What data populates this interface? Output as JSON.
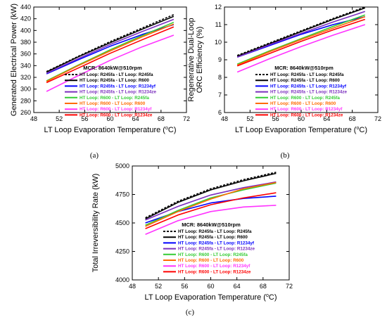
{
  "figure": {
    "panels": [
      {
        "id": "a",
        "panel_label": "(a)",
        "xlabel_main": "LT Loop Evaporation Temperature (",
        "xlabel_sup": "o",
        "xlabel_end": "C)",
        "ylabel_lines": [
          "Generated Electrical Power (kW)"
        ],
        "legend_title": "MCR: 8640kW@510rpm"
      },
      {
        "id": "b",
        "panel_label": "(b)",
        "xlabel_main": "LT Loop Evaporation Temperature (",
        "xlabel_sup": "o",
        "xlabel_end": "C)",
        "ylabel_lines": [
          "Regenerative Dual-Loop",
          "ORC Efficiency (%)"
        ],
        "legend_title": "MCR: 8640kW@510rpm"
      },
      {
        "id": "c",
        "panel_label": "(c)",
        "xlabel_main": "LT Loop Evaporation Temperature (",
        "xlabel_sup": "o",
        "xlabel_end": "C)",
        "ylabel_lines": [
          "Total Irreversibility Rate (kW)"
        ],
        "legend_title": "MCR: 8640kW@510rpm"
      }
    ]
  },
  "chart_data": [
    {
      "type": "line",
      "panel": "a",
      "title": "",
      "xlabel": "LT Loop Evaporation Temperature (oC)",
      "ylabel": "Generated Electrical Power (kW)",
      "xlim": [
        48,
        72
      ],
      "ylim": [
        260,
        440
      ],
      "xticks": [
        48,
        52,
        56,
        60,
        64,
        68,
        72
      ],
      "yticks": [
        260,
        280,
        300,
        320,
        340,
        360,
        380,
        400,
        420,
        440
      ],
      "legend_position": "lower-right",
      "x": [
        50,
        55,
        60,
        65,
        70
      ],
      "series": [
        {
          "name": "HT Loop: R245fa - LT Loop: R245fa",
          "color": "#000000",
          "dashed": true,
          "values": [
            330,
            356,
            381,
            404,
            427
          ]
        },
        {
          "name": "HT Loop: R245fa - LT Loop: R600",
          "color": "#000000",
          "dashed": false,
          "values": [
            329,
            355,
            379,
            402,
            424
          ]
        },
        {
          "name": "HT Loop: R245fa - LT Loop: R1234yf",
          "color": "#0000ff",
          "dashed": false,
          "values": [
            326,
            350,
            373,
            393,
            410
          ]
        },
        {
          "name": "HT Loop: R245fa - LT Loop: R1234ze",
          "color": "#7b2fbe",
          "dashed": false,
          "values": [
            327,
            352,
            376,
            398,
            419
          ]
        },
        {
          "name": "HT Loop: R600 - LT Loop: R245fa",
          "color": "#33cc33",
          "dashed": false,
          "values": [
            314,
            341,
            367,
            391,
            414
          ]
        },
        {
          "name": "HT Loop: R600 - LT Loop: R600",
          "color": "#ff6a00",
          "dashed": false,
          "values": [
            313,
            340,
            365,
            389,
            411
          ]
        },
        {
          "name": "HT Loop: R600 - LT Loop: R1234yf",
          "color": "#ff33ff",
          "dashed": false,
          "values": [
            296,
            323,
            349,
            372,
            392
          ]
        },
        {
          "name": "HT Loop: R600 - LT Loop: R1234ze",
          "color": "#ff0000",
          "dashed": false,
          "values": [
            311,
            336,
            361,
            384,
            406
          ]
        }
      ]
    },
    {
      "type": "line",
      "panel": "b",
      "title": "",
      "xlabel": "LT Loop Evaporation Temperature (oC)",
      "ylabel": "Regenerative Dual-Loop ORC Efficiency (%)",
      "xlim": [
        48,
        72
      ],
      "ylim": [
        6,
        12
      ],
      "xticks": [
        48,
        52,
        56,
        60,
        64,
        68,
        72
      ],
      "yticks": [
        6,
        7,
        8,
        9,
        10,
        11,
        12
      ],
      "legend_position": "lower-right",
      "x": [
        50,
        55,
        60,
        65,
        70
      ],
      "series": [
        {
          "name": "HT Loop: R245fa - LT Loop: R245fa",
          "color": "#000000",
          "dashed": true,
          "values": [
            9.25,
            9.95,
            10.65,
            11.35,
            12.0
          ]
        },
        {
          "name": "HT Loop: R245fa - LT Loop: R600",
          "color": "#000000",
          "dashed": false,
          "values": [
            9.2,
            9.9,
            10.6,
            11.3,
            11.95
          ]
        },
        {
          "name": "HT Loop: R245fa - LT Loop: R1234yf",
          "color": "#0000ff",
          "dashed": false,
          "values": [
            9.15,
            9.8,
            10.45,
            11.0,
            11.45
          ]
        },
        {
          "name": "HT Loop: R245fa - LT Loop: R1234ze",
          "color": "#7b2fbe",
          "dashed": false,
          "values": [
            9.15,
            9.85,
            10.5,
            11.15,
            11.75
          ]
        },
        {
          "name": "HT Loop: R600 - LT Loop: R245fa",
          "color": "#33cc33",
          "dashed": false,
          "values": [
            8.75,
            9.5,
            10.2,
            10.9,
            11.55
          ]
        },
        {
          "name": "HT Loop: R600 - LT Loop: R600",
          "color": "#ff6a00",
          "dashed": false,
          "values": [
            8.7,
            9.45,
            10.15,
            10.8,
            11.45
          ]
        },
        {
          "name": "HT Loop: R600 - LT Loop: R1234yf",
          "color": "#ff33ff",
          "dashed": false,
          "values": [
            8.3,
            9.05,
            9.75,
            10.4,
            11.0
          ]
        },
        {
          "name": "HT Loop: R600 - LT Loop: R1234ze",
          "color": "#ff0000",
          "dashed": false,
          "values": [
            8.65,
            9.35,
            10.05,
            10.7,
            11.3
          ]
        }
      ]
    },
    {
      "type": "line",
      "panel": "c",
      "title": "",
      "xlabel": "LT Loop Evaporation Temperature (oC)",
      "ylabel": "Total Irreversibility Rate (kW)",
      "xlim": [
        48,
        72
      ],
      "ylim": [
        4000,
        5000
      ],
      "xticks": [
        48,
        52,
        56,
        60,
        64,
        68,
        72
      ],
      "yticks": [
        4000,
        4250,
        4500,
        4750,
        5000
      ],
      "legend_position": "lower-right",
      "x": [
        50,
        55,
        60,
        65,
        70
      ],
      "series": [
        {
          "name": "HT Loop: R245fa - LT Loop: R245fa",
          "color": "#000000",
          "dashed": true,
          "values": [
            4545,
            4690,
            4800,
            4880,
            4945
          ]
        },
        {
          "name": "HT Loop: R245fa - LT Loop: R600",
          "color": "#000000",
          "dashed": false,
          "values": [
            4535,
            4680,
            4790,
            4870,
            4935
          ]
        },
        {
          "name": "HT Loop: R245fa - LT Loop: R1234yf",
          "color": "#0000ff",
          "dashed": false,
          "values": [
            4500,
            4600,
            4675,
            4715,
            4735
          ]
        },
        {
          "name": "HT Loop: R245fa - LT Loop: R1234ze",
          "color": "#7b2fbe",
          "dashed": false,
          "values": [
            4525,
            4645,
            4745,
            4810,
            4860
          ]
        },
        {
          "name": "HT Loop: R600 - LT Loop: R245fa",
          "color": "#33cc33",
          "dashed": false,
          "values": [
            4480,
            4610,
            4720,
            4790,
            4850
          ]
        },
        {
          "name": "HT Loop: R600 - LT Loop: R600",
          "color": "#ff6a00",
          "dashed": false,
          "values": [
            4470,
            4600,
            4710,
            4800,
            4855
          ]
        },
        {
          "name": "HT Loop: R600 - LT Loop: R1234yf",
          "color": "#ff33ff",
          "dashed": false,
          "values": [
            4400,
            4520,
            4600,
            4640,
            4655
          ]
        },
        {
          "name": "HT Loop: R600 - LT Loop: R1234ze",
          "color": "#ff0000",
          "dashed": false,
          "values": [
            4450,
            4570,
            4660,
            4720,
            4765
          ]
        }
      ]
    }
  ]
}
